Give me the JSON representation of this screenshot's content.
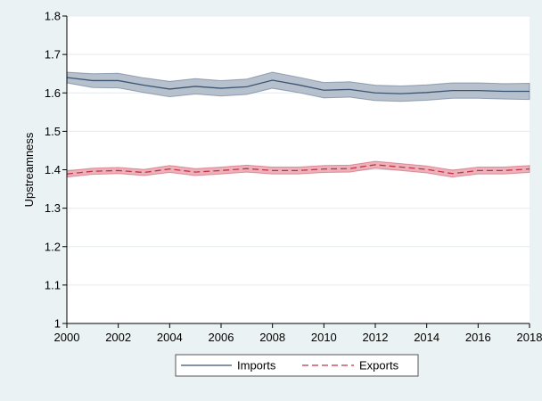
{
  "chart_data": {
    "type": "line",
    "ylabel": "Upstreamness",
    "xlim": [
      2000,
      2018
    ],
    "ylim": [
      1,
      1.8
    ],
    "x_ticks": [
      2000,
      2002,
      2004,
      2006,
      2008,
      2010,
      2012,
      2014,
      2016,
      2018
    ],
    "y_ticks": [
      1,
      1.1,
      1.2,
      1.3,
      1.4,
      1.5,
      1.6,
      1.7,
      1.8
    ],
    "grid": true,
    "legend_position": "bottom",
    "x": [
      2000,
      2001,
      2002,
      2003,
      2004,
      2005,
      2006,
      2007,
      2008,
      2009,
      2010,
      2011,
      2012,
      2013,
      2014,
      2015,
      2016,
      2017,
      2018
    ],
    "series": [
      {
        "name": "Imports",
        "style": "solid",
        "color": "#3a5573",
        "band_color": "#aab6c6",
        "values": [
          1.64,
          1.632,
          1.632,
          1.62,
          1.61,
          1.617,
          1.612,
          1.616,
          1.633,
          1.621,
          1.607,
          1.609,
          1.6,
          1.598,
          1.601,
          1.606,
          1.606,
          1.604,
          1.604
        ],
        "lower": [
          1.626,
          1.614,
          1.613,
          1.601,
          1.59,
          1.597,
          1.592,
          1.596,
          1.612,
          1.601,
          1.587,
          1.589,
          1.58,
          1.578,
          1.581,
          1.586,
          1.586,
          1.584,
          1.583
        ],
        "upper": [
          1.654,
          1.65,
          1.651,
          1.639,
          1.63,
          1.637,
          1.632,
          1.636,
          1.654,
          1.641,
          1.627,
          1.629,
          1.62,
          1.618,
          1.621,
          1.626,
          1.626,
          1.624,
          1.625
        ]
      },
      {
        "name": "Exports",
        "style": "dashed",
        "color": "#c03448",
        "band_color": "#eaa3ae",
        "values": [
          1.389,
          1.396,
          1.398,
          1.393,
          1.402,
          1.394,
          1.398,
          1.403,
          1.398,
          1.398,
          1.402,
          1.403,
          1.413,
          1.407,
          1.401,
          1.39,
          1.398,
          1.398,
          1.402
        ],
        "lower": [
          1.381,
          1.388,
          1.39,
          1.385,
          1.393,
          1.385,
          1.389,
          1.394,
          1.389,
          1.389,
          1.393,
          1.394,
          1.404,
          1.398,
          1.392,
          1.381,
          1.389,
          1.389,
          1.393
        ],
        "upper": [
          1.397,
          1.404,
          1.406,
          1.401,
          1.411,
          1.403,
          1.407,
          1.412,
          1.407,
          1.407,
          1.411,
          1.412,
          1.422,
          1.416,
          1.41,
          1.399,
          1.407,
          1.407,
          1.411
        ]
      }
    ]
  }
}
